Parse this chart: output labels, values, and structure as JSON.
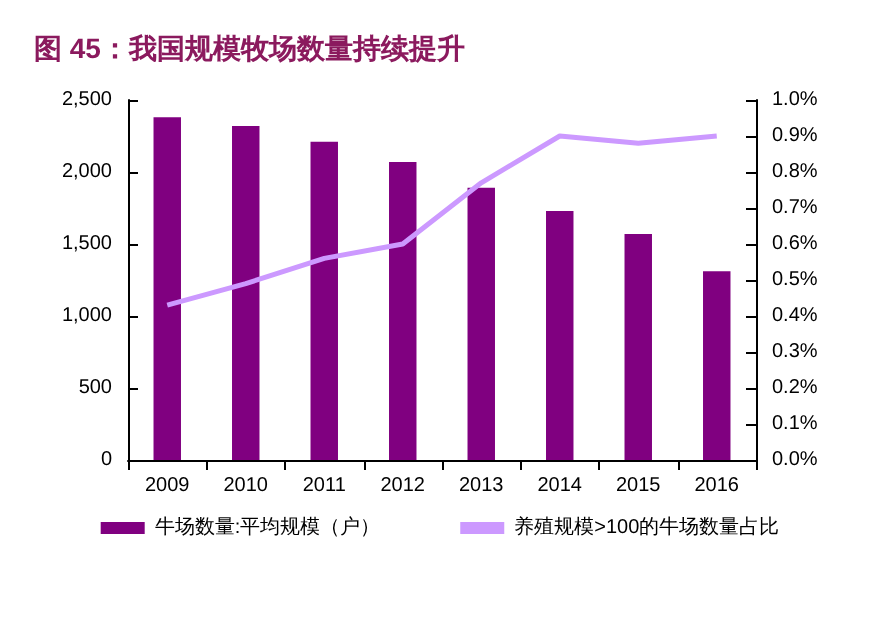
{
  "chart_data": {
    "type": "bar",
    "title": "图 45：我国规模牧场数量持续提升",
    "categories": [
      "2009",
      "2010",
      "2011",
      "2012",
      "2013",
      "2014",
      "2015",
      "2016"
    ],
    "series": [
      {
        "name": "牛场数量:平均规模（户）",
        "color": "#800080",
        "values": [
          2380,
          2320,
          2210,
          2070,
          1890,
          1730,
          1570,
          1310
        ]
      },
      {
        "name": "养殖规模>100的牛场数量占比",
        "type": "line",
        "axis": "y2",
        "color": "#cc99ff",
        "values": [
          0.43,
          0.49,
          0.56,
          0.6,
          0.77,
          0.9,
          0.88,
          0.9
        ]
      }
    ],
    "ylim": [
      0,
      2500
    ],
    "yticks": [
      0,
      500,
      {
        "value": 1000,
        "label": "1,000"
      },
      {
        "value": 1500,
        "label": "1,500"
      },
      {
        "value": 2000,
        "label": "2,000"
      },
      {
        "value": 2500,
        "label": "2,500"
      }
    ],
    "y2lim": [
      0,
      1.0
    ],
    "y2ticks": [
      {
        "value": 0,
        "label": "0.0%"
      },
      {
        "value": 0.1,
        "label": "0.1%"
      },
      {
        "value": 0.2,
        "label": "0.2%"
      },
      {
        "value": 0.3,
        "label": "0.3%"
      },
      {
        "value": 0.4,
        "label": "0.4%"
      },
      {
        "value": 0.5,
        "label": "0.5%"
      },
      {
        "value": 0.6,
        "label": "0.6%"
      },
      {
        "value": 0.7,
        "label": "0.7%"
      },
      {
        "value": 0.8,
        "label": "0.8%"
      },
      {
        "value": 0.9,
        "label": "0.9%"
      },
      {
        "value": 1.0,
        "label": "1.0%"
      }
    ],
    "grid": false,
    "legend": "bottom",
    "marker": "none"
  }
}
